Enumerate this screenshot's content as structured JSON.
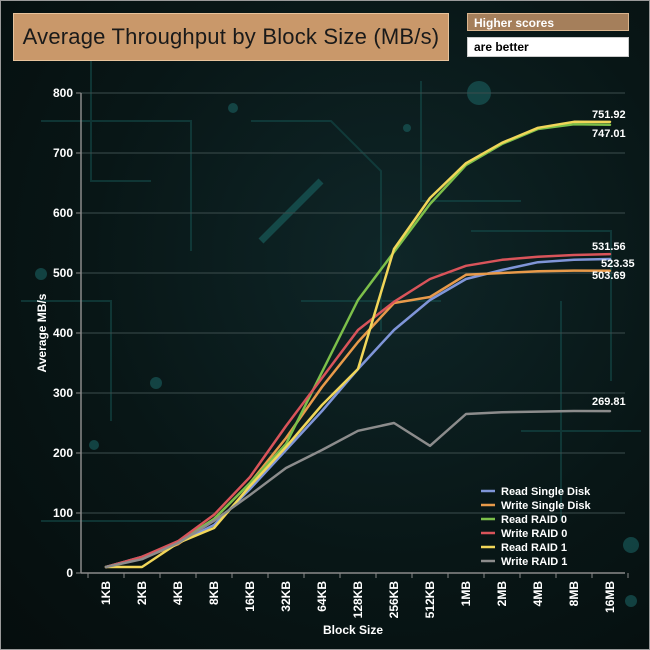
{
  "header": {
    "title": "Average Throughput by Block Size (MB/s)",
    "note_line1": "Higher scores",
    "note_line2": "are better"
  },
  "colors": {
    "title_bg": "#c9986a",
    "note_bg": "#a57f5b",
    "axis": "#7f7f7f",
    "grid": "#3a4a4a",
    "text": "#ffffff"
  },
  "chart_data": {
    "type": "line",
    "title": "Average Throughput by Block Size (MB/s)",
    "xlabel": "Block Size",
    "ylabel": "Average MB/s",
    "ylim": [
      0,
      800
    ],
    "yticks": [
      0,
      100,
      200,
      300,
      400,
      500,
      600,
      700,
      800
    ],
    "grid": true,
    "legend_position": "bottom-right",
    "categories": [
      "1KB",
      "2KB",
      "4KB",
      "8KB",
      "16KB",
      "32KB",
      "64KB",
      "128KB",
      "256KB",
      "512KB",
      "1MB",
      "2MB",
      "4MB",
      "8MB",
      "16MB"
    ],
    "series": [
      {
        "name": "Read Single Disk",
        "color": "#7f95d8",
        "values": [
          10,
          27,
          50,
          80,
          140,
          205,
          270,
          340,
          405,
          455,
          490,
          505,
          518,
          522,
          523.35
        ]
      },
      {
        "name": "Write Single Disk",
        "color": "#e89a4a",
        "values": [
          10,
          24,
          48,
          90,
          150,
          225,
          310,
          385,
          450,
          460,
          497,
          500,
          503,
          504,
          503.69
        ]
      },
      {
        "name": "Read RAID 0",
        "color": "#7cbf4a",
        "values": [
          10,
          26,
          52,
          90,
          150,
          215,
          335,
          455,
          535,
          615,
          680,
          715,
          740,
          748,
          747.01
        ]
      },
      {
        "name": "Write RAID 0",
        "color": "#d9545a",
        "values": [
          10,
          27,
          53,
          97,
          160,
          245,
          325,
          405,
          452,
          490,
          512,
          522,
          527,
          530,
          531.56
        ]
      },
      {
        "name": "Read RAID 1",
        "color": "#f1d659",
        "values": [
          10,
          10,
          50,
          75,
          145,
          210,
          280,
          340,
          540,
          625,
          683,
          717,
          742,
          752,
          751.92
        ]
      },
      {
        "name": "Write RAID 1",
        "color": "#8c8c8c",
        "values": [
          10,
          23,
          50,
          87,
          130,
          175,
          205,
          237,
          250,
          212,
          265,
          268,
          269,
          270,
          269.81
        ]
      }
    ],
    "end_labels": [
      {
        "series": "Read RAID 1",
        "text": "751.92"
      },
      {
        "series": "Read RAID 0",
        "text": "747.01"
      },
      {
        "series": "Write RAID 0",
        "text": "531.56"
      },
      {
        "series": "Read Single Disk",
        "text": "523.35"
      },
      {
        "series": "Write Single Disk",
        "text": "503.69"
      },
      {
        "series": "Write RAID 1",
        "text": "269.81"
      }
    ]
  }
}
